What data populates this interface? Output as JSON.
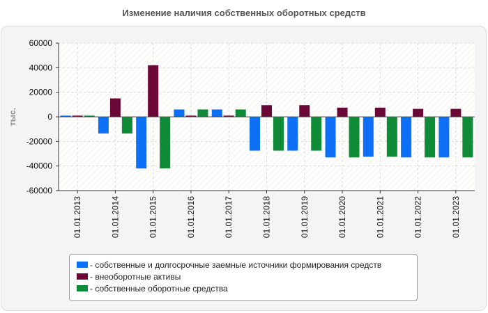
{
  "chart_data": {
    "type": "bar",
    "title": "Изменение наличия собственных оборотных средств",
    "ylabel": "тыс.",
    "xlabel": "",
    "ylim": [
      -60000,
      60000
    ],
    "yticks": [
      60000,
      40000,
      20000,
      0,
      -20000,
      -40000,
      -60000
    ],
    "grid": true,
    "legend_position": "bottom",
    "categories": [
      "01.01.2013",
      "01.01.2014",
      "01.01.2015",
      "01.01.2016",
      "01.01.2017",
      "01.01.2018",
      "01.01.2019",
      "01.01.2020",
      "01.01.2021",
      "01.01.2022",
      "01.01.2023"
    ],
    "series": [
      {
        "name": "- собственные и долгосрочные заемные источники формирования средств",
        "color": "#0d6ff5",
        "values": [
          1000,
          -13500,
          -42000,
          6000,
          6000,
          -27500,
          -27500,
          -33000,
          -32500,
          -33000,
          -33000
        ]
      },
      {
        "name": "- внеоборотные активы",
        "color": "#6b0736",
        "values": [
          1000,
          15000,
          42000,
          1000,
          1000,
          9500,
          9500,
          7500,
          7500,
          6500,
          6500
        ]
      },
      {
        "name": "- собственные оборотные средства",
        "color": "#0f8a36",
        "values": [
          1000,
          -13500,
          -42000,
          6000,
          6000,
          -27500,
          -27500,
          -33000,
          -32500,
          -33000,
          -33000
        ]
      }
    ]
  }
}
